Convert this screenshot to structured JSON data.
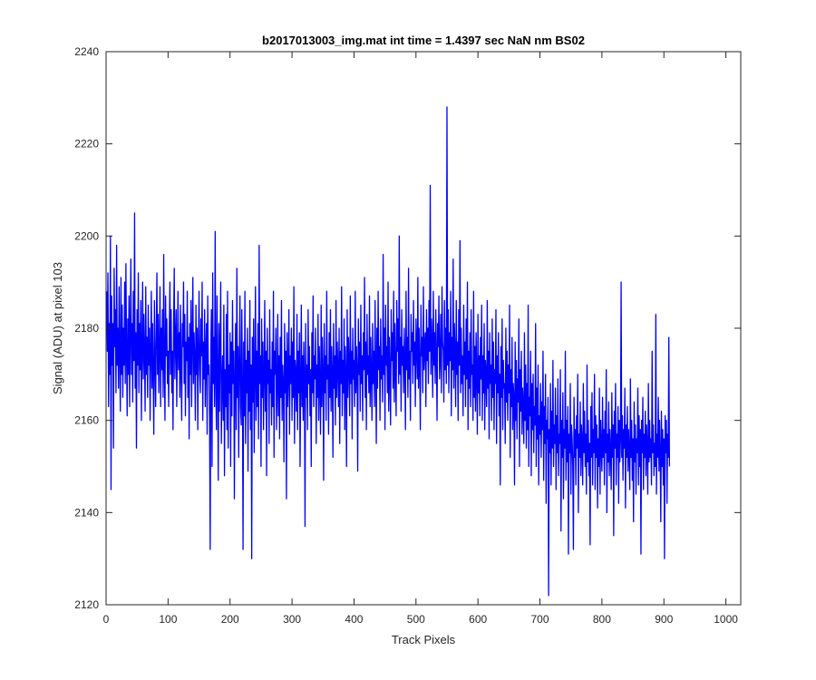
{
  "chart_data": {
    "type": "line",
    "title": "b2017013003_img.mat int time = 1.4397 sec  NaN nm BS02",
    "xlabel": "Track Pixels",
    "ylabel": "Signal (ADU) at pixel 103",
    "xlim": [
      0,
      1024
    ],
    "ylim": [
      2120,
      2240
    ],
    "xticks": [
      0,
      100,
      200,
      300,
      400,
      500,
      600,
      700,
      800,
      900,
      1000
    ],
    "yticks": [
      2120,
      2140,
      2160,
      2180,
      2200,
      2220,
      2240
    ],
    "grid": false,
    "legend": "none",
    "series": [
      {
        "color": "#0000ff",
        "x_start": 1,
        "x_step": 1,
        "values": [
          2188,
          2175,
          2192,
          2163,
          2181,
          2170,
          2200,
          2145,
          2187,
          2172,
          2181,
          2154,
          2193,
          2176,
          2184,
          2166,
          2198,
          2172,
          2180,
          2167,
          2189,
          2174,
          2162,
          2191,
          2170,
          2185,
          2165,
          2180,
          2172,
          2190,
          2168,
          2194,
          2175,
          2161,
          2182,
          2170,
          2187,
          2163,
          2179,
          2195,
          2170,
          2181,
          2164,
          2188,
          2173,
          2205,
          2167,
          2179,
          2154,
          2184,
          2172,
          2192,
          2166,
          2181,
          2171,
          2186,
          2160,
          2176,
          2190,
          2169,
          2183,
          2175,
          2162,
          2189,
          2170,
          2178,
          2165,
          2185,
          2172,
          2180,
          2160,
          2175,
          2188,
          2167,
          2181,
          2170,
          2157,
          2186,
          2174,
          2163,
          2179,
          2192,
          2170,
          2183,
          2166,
          2175,
          2189,
          2163,
          2180,
          2171,
          2184,
          2165,
          2196,
          2172,
          2160,
          2187,
          2174,
          2182,
          2168,
          2175,
          2163,
          2179,
          2190,
          2170,
          2184,
          2166,
          2175,
          2158,
          2181,
          2193,
          2169,
          2177,
          2184,
          2163,
          2175,
          2188,
          2171,
          2179,
          2165,
          2185,
          2172,
          2160,
          2181,
          2176,
          2190,
          2168,
          2183,
          2161,
          2177,
          2173,
          2188,
          2165,
          2178,
          2156,
          2181,
          2170,
          2186,
          2163,
          2177,
          2191,
          2168,
          2179,
          2173,
          2160,
          2185,
          2170,
          2180,
          2158,
          2176,
          2188,
          2171,
          2166,
          2182,
          2174,
          2190,
          2160,
          2177,
          2169,
          2184,
          2163,
          2175,
          2181,
          2157,
          2187,
          2170,
          2172,
          2160,
          2132,
          2176,
          2184,
          2150,
          2192,
          2168,
          2178,
          2163,
          2201,
          2169,
          2158,
          2187,
          2170,
          2147,
          2181,
          2162,
          2176,
          2190,
          2155,
          2168,
          2174,
          2160,
          2185,
          2148,
          2171,
          2163,
          2183,
          2158,
          2188,
          2154,
          2172,
          2166,
          2179,
          2150,
          2177,
          2161,
          2186,
          2168,
          2175,
          2143,
          2169,
          2181,
          2158,
          2193,
          2165,
          2176,
          2152,
          2172,
          2187,
          2163,
          2159,
          2184,
          2168,
          2132,
          2177,
          2161,
          2188,
          2155,
          2173,
          2166,
          2180,
          2149,
          2175,
          2162,
          2186,
          2158,
          2172,
          2130,
          2178,
          2164,
          2182,
          2153,
          2170,
          2189,
          2160,
          2175,
          2163,
          2181,
          2156,
          2198,
          2168,
          2174,
          2150,
          2182,
          2165,
          2177,
          2158,
          2170,
          2186,
          2162,
          2175,
          2148,
          2180,
          2168,
          2173,
          2155,
          2184,
          2166,
          2171,
          2159,
          2177,
          2163,
          2188,
          2152,
          2175,
          2170,
          2180,
          2158,
          2167,
          2183,
          2161,
          2174,
          2156,
          2178,
          2165,
          2186,
          2160,
          2172,
          2168,
          2151,
          2181,
          2166,
          2175,
          2143,
          2179,
          2163,
          2170,
          2184,
          2157,
          2174,
          2168,
          2180,
          2160,
          2177,
          2165,
          2189,
          2155,
          2173,
          2170,
          2162,
          2183,
          2158,
          2175,
          2166,
          2179,
          2150,
          2168,
          2185,
          2163,
          2174,
          2160,
          2177,
          2170,
          2137,
          2181,
          2165,
          2172,
          2158,
          2184,
          2168,
          2176,
          2161,
          2171,
          2150,
          2179,
          2166,
          2187,
          2163,
          2174,
          2169,
          2180,
          2155,
          2172,
          2165,
          2183,
          2160,
          2176,
          2168,
          2157,
          2185,
          2163,
          2178,
          2170,
          2147,
          2181,
          2166,
          2174,
          2160,
          2188,
          2169,
          2172,
          2157,
          2179,
          2165,
          2184,
          2162,
          2176,
          2170,
          2152,
          2181,
          2167,
          2174,
          2159,
          2186,
          2165,
          2177,
          2171,
          2163,
          2180,
          2155,
          2175,
          2168,
          2189,
          2161,
          2173,
          2166,
          2182,
          2158,
          2176,
          2170,
          2150,
          2184,
          2165,
          2178,
          2172,
          2161,
          2187,
          2168,
          2175,
          2156,
          2180,
          2169,
          2173,
          2163,
          2188,
          2166,
          2176,
          2171,
          2149,
          2182,
          2170,
          2177,
          2162,
          2185,
          2168,
          2174,
          2160,
          2179,
          2171,
          2191,
          2165,
          2177,
          2158,
          2183,
          2170,
          2174,
          2166,
          2187,
          2163,
          2178,
          2170,
          2160,
          2181,
          2168,
          2175,
          2163,
          2186,
          2172,
          2155,
          2180,
          2167,
          2188,
          2171,
          2176,
          2160,
          2182,
          2169,
          2174,
          2164,
          2196,
          2170,
          2180,
          2158,
          2185,
          2172,
          2176,
          2166,
          2190,
          2162,
          2178,
          2170,
          2159,
          2184,
          2173,
          2179,
          2167,
          2188,
          2164,
          2181,
          2171,
          2161,
          2186,
          2175,
          2182,
          2168,
          2200,
          2170,
          2178,
          2162,
          2184,
          2172,
          2176,
          2166,
          2180,
          2173,
          2158,
          2188,
          2171,
          2178,
          2165,
          2193,
          2169,
          2175,
          2160,
          2183,
          2175,
          2179,
          2168,
          2186,
          2172,
          2177,
          2163,
          2182,
          2176,
          2169,
          2191,
          2167,
          2180,
          2172,
          2158,
          2185,
          2174,
          2178,
          2166,
          2189,
          2171,
          2176,
          2179,
          2163,
          2184,
          2173,
          2180,
          2168,
          2186,
          2175,
          2211,
          2170,
          2182,
          2177,
          2165,
          2188,
          2172,
          2179,
          2168,
          2184,
          2174,
          2160,
          2181,
          2176,
          2187,
          2169,
          2173,
          2183,
          2166,
          2189,
          2177,
          2175,
          2164,
          2186,
          2171,
          2180,
          2168,
          2228,
          2172,
          2184,
          2166,
          2179,
          2173,
          2188,
          2161,
          2178,
          2171,
          2195,
          2167,
          2181,
          2175,
          2163,
          2186,
          2170,
          2177,
          2160,
          2184,
          2172,
          2199,
          2166,
          2180,
          2168,
          2174,
          2161,
          2185,
          2170,
          2177,
          2163,
          2182,
          2169,
          2190,
          2158,
          2175,
          2167,
          2179,
          2163,
          2184,
          2170,
          2172,
          2160,
          2188,
          2165,
          2176,
          2162,
          2179,
          2170,
          2157,
          2183,
          2166,
          2174,
          2161,
          2178,
          2169,
          2185,
          2160,
          2174,
          2166,
          2181,
          2158,
          2173,
          2170,
          2163,
          2186,
          2167,
          2175,
          2156,
          2179,
          2168,
          2172,
          2160,
          2182,
          2165,
          2177,
          2158,
          2171,
          2168,
          2184,
          2155,
          2174,
          2166,
          2179,
          2161,
          2170,
          2146,
          2176,
          2165,
          2182,
          2158,
          2173,
          2167,
          2168,
          2155,
          2180,
          2164,
          2175,
          2160,
          2172,
          2166,
          2185,
          2152,
          2171,
          2163,
          2178,
          2158,
          2168,
          2165,
          2146,
          2177,
          2160,
          2173,
          2156,
          2169,
          2164,
          2182,
          2150,
          2171,
          2162,
          2175,
          2157,
          2167,
          2163,
          2155,
          2179,
          2160,
          2172,
          2154,
          2168,
          2158,
          2185,
          2150,
          2165,
          2161,
          2175,
          2148,
          2168,
          2158,
          2170,
          2153,
          2163,
          2159,
          2181,
          2150,
          2167,
          2156,
          2172,
          2146,
          2161,
          2157,
          2168,
          2152,
          2164,
          2158,
          2175,
          2147,
          2163,
          2155,
          2170,
          2142,
          2160,
          2156,
          2165,
          2122,
          2158,
          2153,
          2168,
          2146,
          2162,
          2154,
          2173,
          2150,
          2159,
          2155,
          2167,
          2145,
          2161,
          2153,
          2169,
          2148,
          2157,
          2155,
          2171,
          2136,
          2160,
          2152,
          2166,
          2143,
          2158,
          2154,
          2175,
          2147,
          2160,
          2151,
          2163,
          2131,
          2157,
          2153,
          2168,
          2144,
          2159,
          2156,
          2150,
          2132,
          2165,
          2152,
          2158,
          2146,
          2161,
          2154,
          2170,
          2140,
          2157,
          2152,
          2164,
          2148,
          2159,
          2155,
          2146,
          2168,
          2153,
          2162,
          2150,
          2157,
          2144,
          2172,
          2151,
          2160,
          2148,
          2155,
          2133,
          2163,
          2152,
          2166,
          2146,
          2158,
          2153,
          2170,
          2145,
          2161,
          2152,
          2159,
          2141,
          2156,
          2150,
          2167,
          2144,
          2160,
          2154,
          2149,
          2165,
          2152,
          2158,
          2146,
          2162,
          2153,
          2171,
          2140,
          2157,
          2151,
          2164,
          2148,
          2158,
          2153,
          2145,
          2166,
          2152,
          2159,
          2135,
          2162,
          2154,
          2168,
          2146,
          2157,
          2152,
          2163,
          2142,
          2160,
          2151,
          2156,
          2190,
          2152,
          2161,
          2147,
          2158,
          2154,
          2167,
          2141,
          2159,
          2152,
          2163,
          2149,
          2158,
          2153,
          2145,
          2169,
          2152,
          2160,
          2147,
          2156,
          2138,
          2164,
          2151,
          2159,
          2144,
          2156,
          2153,
          2167,
          2146,
          2161,
          2150,
          2158,
          2131,
          2160,
          2153,
          2165,
          2145,
          2157,
          2152,
          2162,
          2148,
          2159,
          2154,
          2144,
          2168,
          2151,
          2160,
          2152,
          2156,
          2146,
          2175,
          2153,
          2159,
          2148,
          2155,
          2150,
          2183,
          2144,
          2157,
          2152,
          2165,
          2149,
          2160,
          2153,
          2138,
          2162,
          2150,
          2158,
          2146,
          2156,
          2130,
          2161,
          2153,
          2160,
          2142,
          2157,
          2152,
          2178,
          2150
        ]
      }
    ]
  }
}
